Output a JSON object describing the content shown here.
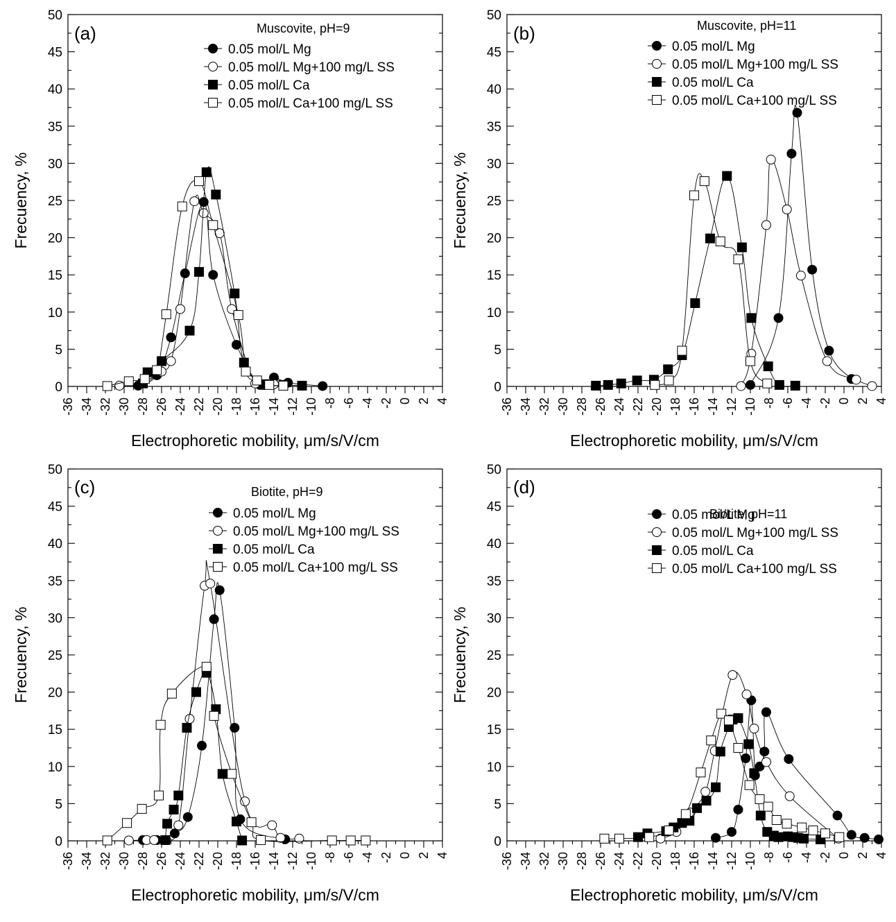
{
  "chart_data": [
    {
      "type": "line",
      "panel_label": "(a)",
      "title": "Muscovite, pH=9",
      "xlabel": "Electrophoretic mobility, μm/s/V/cm",
      "ylabel": "Frecuency, %",
      "xlim": [
        -36,
        4
      ],
      "ylim": [
        0,
        50
      ],
      "xticks": [
        -36,
        -34,
        -32,
        -30,
        -28,
        -26,
        -24,
        -22,
        -20,
        -18,
        -16,
        -14,
        -12,
        -10,
        -8,
        -6,
        -4,
        -2,
        0,
        2,
        4
      ],
      "yticks": [
        0,
        5,
        10,
        15,
        20,
        25,
        30,
        35,
        40,
        45,
        50
      ],
      "series": [
        {
          "name": "0.05 mol/L Mg",
          "marker": "circle",
          "filled": true,
          "x": [
            -28.5,
            -26.5,
            -25,
            -23.5,
            -21.5,
            -20.5,
            -18,
            -15.5,
            -14,
            -12.5,
            -8.8
          ],
          "y": [
            0.1,
            1.5,
            6.6,
            15.2,
            24.8,
            15.0,
            5.6,
            0.2,
            1.2,
            0.5,
            0.05
          ]
        },
        {
          "name": "0.05 mol/L Mg+100 mg/L SS",
          "marker": "circle",
          "filled": false,
          "x": [
            -30.5,
            -28,
            -26,
            -25,
            -24,
            -22.5,
            -21.5,
            -19.8,
            -18.5,
            -16,
            -14
          ],
          "y": [
            0.1,
            0.4,
            2.0,
            3.4,
            10.4,
            24.9,
            23.3,
            20.6,
            10.4,
            0.4,
            0.3
          ]
        },
        {
          "name": "0.05 mol/L Ca",
          "marker": "square",
          "filled": true,
          "x": [
            -28,
            -27.5,
            -26,
            -23,
            -22,
            -21.2,
            -20.2,
            -18.2,
            -17.2,
            -15,
            -13,
            -11
          ],
          "y": [
            0.4,
            1.9,
            3.4,
            7.5,
            15.4,
            28.8,
            25.8,
            12.5,
            3.2,
            0.3,
            0.2,
            0.1
          ]
        },
        {
          "name": "0.05 mol/L Ca+100 mg/L SS",
          "marker": "square",
          "filled": false,
          "x": [
            -31.8,
            -29.5,
            -27.8,
            -26.5,
            -25.5,
            -23.8,
            -22,
            -20.5,
            -17.8,
            -17,
            -15.8,
            -14.5,
            -13
          ],
          "y": [
            0.05,
            0.7,
            1.0,
            2.2,
            9.7,
            24.2,
            27.6,
            21.7,
            9.6,
            2.0,
            0.8,
            0.2,
            0.1
          ]
        }
      ]
    },
    {
      "type": "line",
      "panel_label": "(b)",
      "title": "Muscovite, pH=11",
      "xlabel": "Electrophoretic mobility, μm/s/V/cm",
      "ylabel": "Frecuency, %",
      "xlim": [
        -36,
        4
      ],
      "ylim": [
        0,
        50
      ],
      "xticks": [
        -36,
        -34,
        -32,
        -30,
        -28,
        -26,
        -24,
        -22,
        -20,
        -18,
        -16,
        -14,
        -12,
        -10,
        -8,
        -6,
        -4,
        -2,
        0,
        2,
        4
      ],
      "yticks": [
        0,
        5,
        10,
        15,
        20,
        25,
        30,
        35,
        40,
        45,
        50
      ],
      "series": [
        {
          "name": "0.05 mol/L Mg",
          "marker": "circle",
          "filled": true,
          "x": [
            -10,
            -7,
            -5.6,
            -5,
            -3.4,
            -1.6,
            0.8
          ],
          "y": [
            0.2,
            9.2,
            31.3,
            36.8,
            15.7,
            4.8,
            1.0
          ]
        },
        {
          "name": "0.05 mol/L Mg+100 mg/L SS",
          "marker": "circle",
          "filled": false,
          "x": [
            -11,
            -9.9,
            -8.3,
            -7.8,
            -6.1,
            -4.6,
            -1.8,
            1.3,
            3
          ],
          "y": [
            0.05,
            4.4,
            21.7,
            30.5,
            23.8,
            14.9,
            3.4,
            0.9,
            0.05
          ]
        },
        {
          "name": "0.05 mol/L Ca",
          "marker": "square",
          "filled": true,
          "x": [
            -26.5,
            -25.2,
            -23.8,
            -22.1,
            -20.3,
            -18.8,
            -17.3,
            -15.9,
            -14.3,
            -12.5,
            -10.9,
            -9.9,
            -8.1,
            -6.9,
            -5.2
          ],
          "y": [
            0.1,
            0.2,
            0.4,
            0.8,
            0.9,
            2.3,
            4.2,
            11.2,
            19.9,
            28.3,
            18.7,
            9.2,
            2.7,
            0.2,
            0.1
          ]
        },
        {
          "name": "0.05 mol/L Ca+100 mg/L SS",
          "marker": "square",
          "filled": false,
          "x": [
            -20.2,
            -18.7,
            -17.3,
            -16,
            -14.9,
            -13.2,
            -11.3,
            -10,
            -8.2
          ],
          "y": [
            0.2,
            0.8,
            4.8,
            25.7,
            27.6,
            19.5,
            17.1,
            3.4,
            0.4
          ]
        }
      ]
    },
    {
      "type": "line",
      "panel_label": "(c)",
      "title": "Biotite, pH=9",
      "xlabel": "Electrophoretic mobility, μm/s/V/cm",
      "ylabel": "Frecuency, %",
      "xlim": [
        -36,
        4
      ],
      "ylim": [
        0,
        50
      ],
      "xticks": [
        -36,
        -34,
        -32,
        -30,
        -28,
        -26,
        -24,
        -22,
        -20,
        -18,
        -16,
        -14,
        -12,
        -10,
        -8,
        -6,
        -4,
        -2,
        0,
        2,
        4
      ],
      "yticks": [
        0,
        5,
        10,
        15,
        20,
        25,
        30,
        35,
        40,
        45,
        50
      ],
      "series": [
        {
          "name": "0.05 mol/L Mg",
          "marker": "circle",
          "filled": true,
          "x": [
            -28,
            -26.5,
            -24.6,
            -23.2,
            -21.7,
            -20.4,
            -19.8,
            -18.2,
            -17.6,
            -12.8
          ],
          "y": [
            0.1,
            0.1,
            1.0,
            3.2,
            12.8,
            29.8,
            33.7,
            15.2,
            2.9,
            0.2
          ]
        },
        {
          "name": "0.05 mol/L Mg+100 mg/L SS",
          "marker": "circle",
          "filled": false,
          "x": [
            -29.5,
            -27.6,
            -26.8,
            -25.5,
            -24.2,
            -23,
            -21.4,
            -20.8,
            -17.1,
            -14.2,
            -13.3,
            -11.3
          ],
          "y": [
            0.05,
            0.1,
            0.1,
            0.1,
            2.1,
            16.4,
            34.3,
            34.6,
            5.3,
            2.1,
            0.4,
            0.3
          ]
        },
        {
          "name": "0.05 mol/L Ca",
          "marker": "square",
          "filled": true,
          "x": [
            -25.6,
            -25.4,
            -24.7,
            -24.2,
            -23.3,
            -22.3,
            -21.2,
            -20.2,
            -19.5,
            -18,
            -17.4
          ],
          "y": [
            0.1,
            2.3,
            4.2,
            6.1,
            15.2,
            20.0,
            22.6,
            17.7,
            9.0,
            2.6,
            0.05
          ]
        },
        {
          "name": "0.05 mol/L Ca+100 mg/L SS",
          "marker": "square",
          "filled": false,
          "x": [
            -31.8,
            -29.7,
            -28.1,
            -26.3,
            -26.1,
            -24.9,
            -21.2,
            -20.4,
            -18.5,
            -16.4,
            -15.4,
            -7.8,
            -5.8,
            -4.2
          ],
          "y": [
            0.05,
            2.4,
            4.3,
            6.1,
            15.6,
            19.8,
            23.4,
            16.8,
            9.0,
            2.5,
            0.1,
            0.05,
            0.05,
            0.05
          ]
        }
      ]
    },
    {
      "type": "line",
      "panel_label": "(d)",
      "title": "Biotite, pH=11",
      "xlabel": "Electrophoretic mobility, μm/s/V/cm",
      "ylabel": "Frecuency, %",
      "xlim": [
        -36,
        4
      ],
      "ylim": [
        0,
        50
      ],
      "xticks": [
        -36,
        -34,
        -32,
        -30,
        -28,
        -26,
        -24,
        -22,
        -20,
        -18,
        -16,
        -14,
        -12,
        -10,
        -8,
        -6,
        -4,
        -2,
        0,
        2,
        4
      ],
      "yticks": [
        0,
        5,
        10,
        15,
        20,
        25,
        30,
        35,
        40,
        45,
        50
      ],
      "series": [
        {
          "name": "0.05 mol/L Mg",
          "marker": "circle",
          "filled": true,
          "x": [
            -13.7,
            -12,
            -11.3,
            -10.5,
            -9.9,
            -9.5,
            -9,
            -8.5,
            -8.3,
            -5.9,
            -0.7,
            0.8,
            2.2,
            3.7
          ],
          "y": [
            0.4,
            1.2,
            4.2,
            11.1,
            18.9,
            8.8,
            10.0,
            12.0,
            17.3,
            11.0,
            3.4,
            0.8,
            0.4,
            0.2
          ]
        },
        {
          "name": "0.05 mol/L Mg+100 mg/L SS",
          "marker": "circle",
          "filled": false,
          "x": [
            -19.6,
            -17.9,
            -16.4,
            -14.8,
            -13.8,
            -11.9,
            -10.4,
            -9.6,
            -8.3,
            -5.8,
            -0.6
          ],
          "y": [
            0.3,
            1.2,
            3.8,
            6.6,
            12.1,
            22.3,
            19.7,
            15.1,
            10.6,
            6.0,
            0.3
          ]
        },
        {
          "name": "0.05 mol/L Ca",
          "marker": "square",
          "filled": true,
          "x": [
            -22,
            -21,
            -19,
            -18.2,
            -17.3,
            -16.5,
            -15.7,
            -14.7,
            -13.7,
            -13.2,
            -12.3,
            -11.9,
            -11.3,
            -10.2,
            -9.6,
            -8.9,
            -8.2,
            -7.5,
            -7,
            -6,
            -5.4,
            -4.9,
            -4.3,
            -2.5
          ],
          "y": [
            0.5,
            1.0,
            1.3,
            1.8,
            2.4,
            2.7,
            4.4,
            5.4,
            7.2,
            12.0,
            15.3,
            16.3,
            16.5,
            13.0,
            9.1,
            3.4,
            1.2,
            0.7,
            0.5,
            0.6,
            0.5,
            0.4,
            0.3,
            0.2
          ]
        },
        {
          "name": "0.05 mol/L Ca+100 mg/L SS",
          "marker": "square",
          "filled": false,
          "x": [
            -25.6,
            -24,
            -20.8,
            -18.7,
            -16.9,
            -15.3,
            -14.2,
            -13.1,
            -12.3,
            -11.3,
            -10.1,
            -9,
            -8.1,
            -7.2,
            -6.1,
            -4.5,
            -3.3,
            -2,
            -0.5
          ],
          "y": [
            0.3,
            0.3,
            0.5,
            1.4,
            3.6,
            9.2,
            13.5,
            17.1,
            16.2,
            12.5,
            7.5,
            5.6,
            4.6,
            2.8,
            2.3,
            1.8,
            1.4,
            1.0,
            0.5
          ]
        }
      ]
    }
  ]
}
